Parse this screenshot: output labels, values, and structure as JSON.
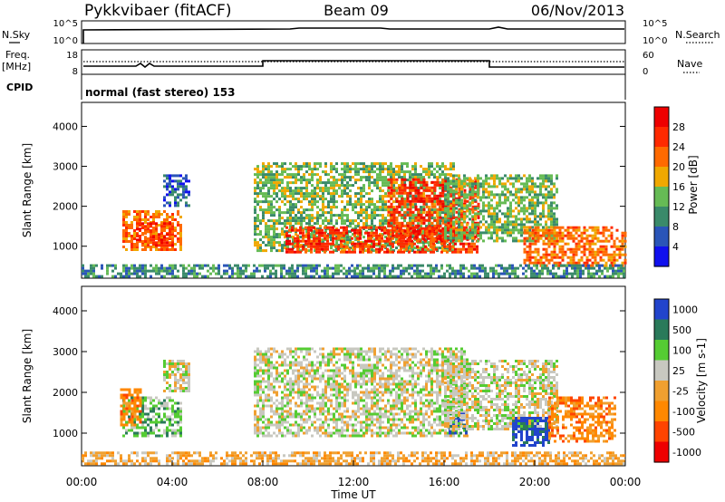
{
  "header": {
    "title": "Pykkvibaer (fitACF)",
    "beam": "Beam 09",
    "date": "06/Nov/2013"
  },
  "status_panels": {
    "nsky_label": "N.Sky",
    "nsky_top": "10^5",
    "nsky_bottom": "10^0",
    "nsearch_label": "N.Search",
    "nsearch_top": "10^5",
    "nsearch_bottom": "10^0",
    "freq_label": "Freq.",
    "freq_unit": "[MHz]",
    "freq_top": "18",
    "freq_bottom": "8",
    "nave_label": "Nave",
    "nave_top": "60",
    "nave_bottom": "0",
    "cpid_label": "CPID",
    "cpid_text": "normal (fast stereo) 153"
  },
  "chart_data": [
    {
      "type": "heatmap",
      "panel": "power",
      "ylabel": "Slant Range [km]",
      "yticks": [
        "1000",
        "2000",
        "3000",
        "4000"
      ],
      "ylim": [
        200,
        4600
      ],
      "xlim": [
        0,
        24
      ],
      "colorbar_label": "Power [dB]",
      "colorbar_ticks": [
        "4",
        "8",
        "12",
        "16",
        "20",
        "24",
        "28"
      ],
      "colors": [
        "#1010ee",
        "#2a55b8",
        "#3a8a6a",
        "#66bb55",
        "#f0a800",
        "#ff6a00",
        "#ff2a00",
        "#ee0000"
      ],
      "echo_regions": [
        {
          "t0": 1.8,
          "t1": 4.4,
          "r0": 900,
          "r1": 1900,
          "level": 5
        },
        {
          "t0": 2.4,
          "t1": 4.0,
          "r0": 1050,
          "r1": 1600,
          "level": 6
        },
        {
          "t0": 3.6,
          "t1": 4.8,
          "r0": 2000,
          "r1": 2800,
          "level": 1
        },
        {
          "t0": 7.6,
          "t1": 16.4,
          "r0": 900,
          "r1": 3100,
          "level": 3
        },
        {
          "t0": 9.0,
          "t1": 17.5,
          "r0": 850,
          "r1": 1500,
          "level": 6
        },
        {
          "t0": 13.5,
          "t1": 17.5,
          "r0": 1200,
          "r1": 2700,
          "level": 6
        },
        {
          "t0": 16.0,
          "t1": 21.0,
          "r0": 1100,
          "r1": 2800,
          "level": 3
        },
        {
          "t0": 19.5,
          "t1": 24.0,
          "r0": 500,
          "r1": 1500,
          "level": 5
        },
        {
          "t0": 0.0,
          "t1": 24.0,
          "r0": 250,
          "r1": 550,
          "level": 2
        }
      ]
    },
    {
      "type": "heatmap",
      "panel": "velocity",
      "ylabel": "Slant Range [km]",
      "xlabel": "Time UT",
      "yticks": [
        "1000",
        "2000",
        "3000",
        "4000"
      ],
      "xticks": [
        "00:00",
        "04:00",
        "08:00",
        "12:00",
        "16:00",
        "20:00",
        "00:00"
      ],
      "ylim": [
        200,
        4600
      ],
      "xlim": [
        0,
        24
      ],
      "colorbar_label": "Velocity [m s-1]",
      "colorbar_ticks": [
        "1000",
        "500",
        "100",
        "25",
        "-25",
        "-100",
        "-500",
        "-1000"
      ],
      "colors": [
        "#2244cc",
        "#2a7a5a",
        "#55cc33",
        "#c8c8c0",
        "#f0a030",
        "#ff8800",
        "#ff4400",
        "#ee0000"
      ],
      "echo_regions": [
        {
          "t0": 1.8,
          "t1": 4.4,
          "r0": 900,
          "r1": 1900,
          "level": 2
        },
        {
          "t0": 1.7,
          "t1": 2.6,
          "r0": 1200,
          "r1": 2100,
          "level": 5
        },
        {
          "t0": 3.6,
          "t1": 4.8,
          "r0": 2000,
          "r1": 2800,
          "level": 3
        },
        {
          "t0": 7.6,
          "t1": 17.0,
          "r0": 900,
          "r1": 3100,
          "level": 3
        },
        {
          "t0": 16.2,
          "t1": 17.0,
          "r0": 1000,
          "r1": 1500,
          "level": 0
        },
        {
          "t0": 16.0,
          "t1": 21.0,
          "r0": 1100,
          "r1": 2800,
          "level": 3
        },
        {
          "t0": 19.0,
          "t1": 20.6,
          "r0": 700,
          "r1": 1400,
          "level": 0
        },
        {
          "t0": 20.6,
          "t1": 23.5,
          "r0": 800,
          "r1": 1900,
          "level": 5
        },
        {
          "t0": 0.0,
          "t1": 24.0,
          "r0": 250,
          "r1": 550,
          "level": 4
        }
      ]
    }
  ]
}
